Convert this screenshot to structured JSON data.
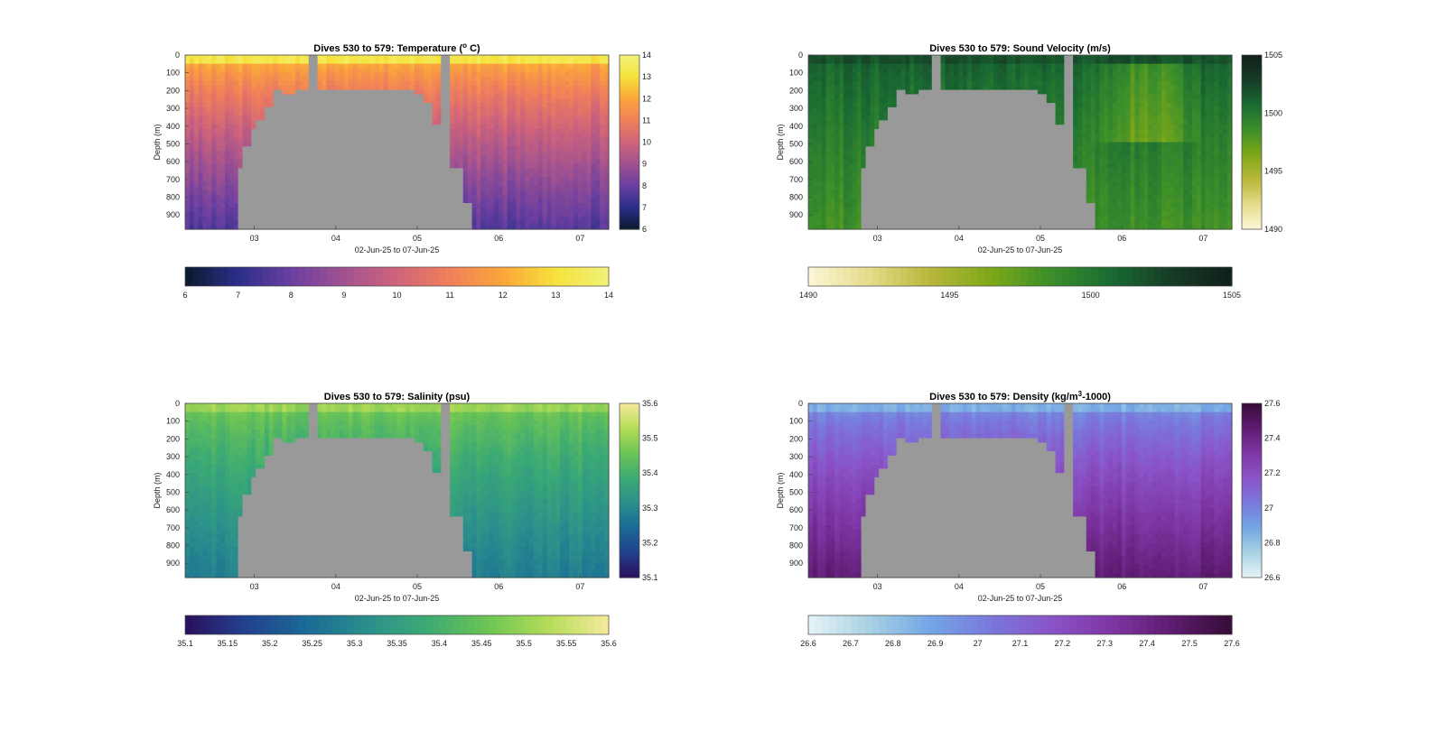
{
  "figure": {
    "background": "#ffffff",
    "land_color": "#999999"
  },
  "chart_data": [
    {
      "type": "heatmap",
      "id": "temperature",
      "title": "Dives 530 to 579: Temperature (",
      "title_sup": "o",
      "title_end": " C)",
      "xlabel": "02-Jun-25 to 07-Jun-25",
      "ylabel": "Depth (m)",
      "x_ticks": [
        "03",
        "04",
        "05",
        "06",
        "07"
      ],
      "y_ticks": [
        "0",
        "100",
        "200",
        "300",
        "400",
        "500",
        "600",
        "700",
        "800",
        "900"
      ],
      "xlim_days": [
        2.15,
        7.35
      ],
      "ylim": [
        0,
        980
      ],
      "colorbar_ticks": [
        "14",
        "13",
        "12",
        "11",
        "10",
        "9",
        "8",
        "7",
        "6"
      ],
      "h_colorbar_ticks": [
        "6",
        "7",
        "8",
        "9",
        "10",
        "11",
        "12",
        "13",
        "14"
      ],
      "range": [
        6,
        14
      ],
      "colormap": [
        "#0b1a2c",
        "#2c2f8a",
        "#6a3fa0",
        "#a05290",
        "#d0647a",
        "#f0805a",
        "#fba63a",
        "#f5e23c",
        "#f2f27a"
      ],
      "surface_value": 12.6,
      "deep_value": 7.6,
      "shallow_land_value": 10.5
    },
    {
      "type": "heatmap",
      "id": "sound_velocity",
      "title": "Dives 530 to 579: Sound Velocity (m/s)",
      "xlabel": "02-Jun-25 to 07-Jun-25",
      "ylabel": "Depth (m)",
      "x_ticks": [
        "03",
        "04",
        "05",
        "06",
        "07"
      ],
      "y_ticks": [
        "0",
        "100",
        "200",
        "300",
        "400",
        "500",
        "600",
        "700",
        "800",
        "900"
      ],
      "xlim_days": [
        2.15,
        7.35
      ],
      "ylim": [
        0,
        980
      ],
      "colorbar_ticks": [
        "1505",
        "1500",
        "1495",
        "1490"
      ],
      "h_colorbar_ticks": [
        "1490",
        "1495",
        "1500",
        "1505"
      ],
      "range": [
        1490,
        1505
      ],
      "colormap": [
        "#fbf7d8",
        "#e6dc8a",
        "#b9b73c",
        "#7ea818",
        "#3c8f2a",
        "#1a6b32",
        "#163b26",
        "#10201a"
      ],
      "surface_value": 1501.5,
      "deep_value": 1498.5,
      "shallow_land_value": 1497.0
    },
    {
      "type": "heatmap",
      "id": "salinity",
      "title": "Dives 530 to 579: Salinity (psu)",
      "xlabel": "02-Jun-25 to 07-Jun-25",
      "ylabel": "Depth (m)",
      "x_ticks": [
        "03",
        "04",
        "05",
        "06",
        "07"
      ],
      "y_ticks": [
        "0",
        "100",
        "200",
        "300",
        "400",
        "500",
        "600",
        "700",
        "800",
        "900"
      ],
      "xlim_days": [
        2.15,
        7.35
      ],
      "ylim": [
        0,
        980
      ],
      "colorbar_ticks": [
        "35.6",
        "35.5",
        "35.4",
        "35.3",
        "35.2",
        "35.1"
      ],
      "h_colorbar_ticks": [
        "35.1",
        "35.15",
        "35.2",
        "35.25",
        "35.3",
        "35.35",
        "35.4",
        "35.45",
        "35.5",
        "35.55",
        "35.6"
      ],
      "range": [
        35.1,
        35.6
      ],
      "colormap": [
        "#2a0f5e",
        "#23418f",
        "#1a6a96",
        "#2a8f8c",
        "#3caa74",
        "#6cc454",
        "#b4dc58",
        "#f5ea9c"
      ],
      "surface_value": 35.48,
      "deep_value": 35.28,
      "shallow_land_value": 35.43
    },
    {
      "type": "heatmap",
      "id": "density",
      "title": "Dives 530 to 579: Density (kg/m",
      "title_sup": "3",
      "title_end": "-1000)",
      "xlabel": "02-Jun-25 to 07-Jun-25",
      "ylabel": "Depth (m)",
      "x_ticks": [
        "03",
        "04",
        "05",
        "06",
        "07"
      ],
      "y_ticks": [
        "0",
        "100",
        "200",
        "300",
        "400",
        "500",
        "600",
        "700",
        "800",
        "900"
      ],
      "xlim_days": [
        2.15,
        7.35
      ],
      "ylim": [
        0,
        980
      ],
      "colorbar_ticks": [
        "27.6",
        "27.4",
        "27.2",
        "27",
        "26.8",
        "26.6"
      ],
      "h_colorbar_ticks": [
        "26.6",
        "26.7",
        "26.8",
        "26.9",
        "27",
        "27.1",
        "27.2",
        "27.3",
        "27.4",
        "27.5",
        "27.6"
      ],
      "range": [
        26.6,
        27.6
      ],
      "colormap": [
        "#e8f4f6",
        "#a8d2e4",
        "#73a6e4",
        "#7a78dc",
        "#8a54c8",
        "#7e36a4",
        "#5e1c72",
        "#360c36"
      ],
      "surface_value": 26.92,
      "deep_value": 27.45,
      "shallow_land_value": 27.15
    }
  ]
}
